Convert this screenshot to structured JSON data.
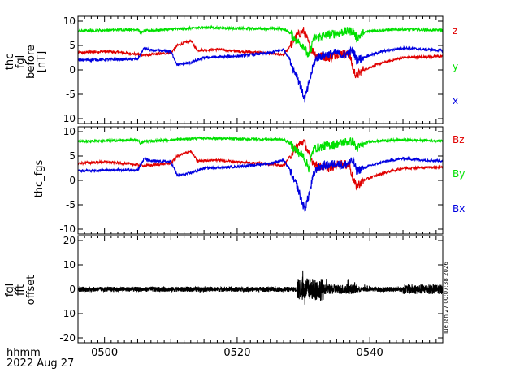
{
  "footer": {
    "time_format": "hhmm",
    "date": "2022 Aug 27",
    "timestamp": "Tue Jan 27 00:07:38 2026"
  },
  "x_axis": {
    "ticks": [
      "0500",
      "0520",
      "0540"
    ]
  },
  "chart_data": [
    {
      "type": "line",
      "ylabel_lines": [
        "thc",
        "fgl",
        "before",
        "[nT]"
      ],
      "ylim": [
        -11,
        11
      ],
      "yticks": [
        -10,
        -5,
        0,
        5,
        10
      ],
      "xlim_min": [
        496,
        551
      ],
      "legend_placement": "right",
      "series": [
        {
          "name": "z",
          "color": "#e00000",
          "shape": "Bz"
        },
        {
          "name": "y",
          "color": "#00e000",
          "shape": "By"
        },
        {
          "name": "x",
          "color": "#0000e0",
          "shape": "Bx"
        }
      ]
    },
    {
      "type": "line",
      "ylabel_lines": [
        "thc_fgs"
      ],
      "ylim": [
        -11,
        11
      ],
      "yticks": [
        -10,
        -5,
        0,
        5,
        10
      ],
      "xlim_min": [
        496,
        551
      ],
      "legend_placement": "right",
      "series": [
        {
          "name": "Bz",
          "color": "#e00000",
          "shape": "Bz"
        },
        {
          "name": "By",
          "color": "#00e000",
          "shape": "By"
        },
        {
          "name": "Bx",
          "color": "#0000e0",
          "shape": "Bx"
        }
      ]
    },
    {
      "type": "line",
      "ylabel_lines": [
        "fgl",
        "fft",
        "offset"
      ],
      "ylim": [
        -22,
        22
      ],
      "yticks": [
        -20,
        -10,
        0,
        10,
        20
      ],
      "xlim_min": [
        496,
        551
      ],
      "series": [
        {
          "name": "offset",
          "color": "#000000",
          "shape": "noise"
        }
      ]
    }
  ],
  "series_profiles": {
    "Bx": [
      [
        496,
        2.0
      ],
      [
        505,
        2.2
      ],
      [
        506,
        4.5
      ],
      [
        507,
        4.0
      ],
      [
        510,
        3.8
      ],
      [
        511,
        1.0
      ],
      [
        513,
        1.5
      ],
      [
        515,
        2.5
      ],
      [
        520,
        2.8
      ],
      [
        525,
        3.5
      ],
      [
        527,
        4.2
      ],
      [
        528,
        2.0
      ],
      [
        528.5,
        0.0
      ],
      [
        529,
        -1.0
      ],
      [
        529.8,
        -4.5
      ],
      [
        530.2,
        -6.0
      ],
      [
        530.8,
        -3.0
      ],
      [
        531.5,
        1.0
      ],
      [
        532,
        2.5
      ],
      [
        533,
        3.0
      ],
      [
        535,
        3.5
      ],
      [
        536,
        3.0
      ],
      [
        537.5,
        4.0
      ],
      [
        538,
        2.0
      ],
      [
        539,
        2.5
      ],
      [
        540,
        3.0
      ],
      [
        542,
        3.8
      ],
      [
        545,
        4.5
      ],
      [
        548,
        4.2
      ],
      [
        551,
        4.0
      ]
    ],
    "By": [
      [
        496,
        8.0
      ],
      [
        505,
        8.3
      ],
      [
        505.5,
        7.5
      ],
      [
        506,
        8.0
      ],
      [
        515,
        8.7
      ],
      [
        520,
        8.5
      ],
      [
        527,
        8.4
      ],
      [
        528,
        7.5
      ],
      [
        529,
        6.0
      ],
      [
        530,
        5.0
      ],
      [
        530.8,
        2.5
      ],
      [
        531.5,
        6.5
      ],
      [
        533,
        7.0
      ],
      [
        535,
        7.5
      ],
      [
        536,
        7.8
      ],
      [
        537.5,
        8.0
      ],
      [
        538,
        6.5
      ],
      [
        539,
        7.5
      ],
      [
        540,
        8.0
      ],
      [
        545,
        8.3
      ],
      [
        551,
        8.1
      ]
    ],
    "Bz": [
      [
        496,
        3.5
      ],
      [
        500,
        3.8
      ],
      [
        503,
        3.5
      ],
      [
        506,
        3.0
      ],
      [
        510,
        3.5
      ],
      [
        511,
        5.0
      ],
      [
        513,
        6.0
      ],
      [
        514,
        4.0
      ],
      [
        517,
        4.2
      ],
      [
        520,
        3.8
      ],
      [
        524,
        3.5
      ],
      [
        527,
        3.0
      ],
      [
        528,
        5.0
      ],
      [
        529,
        7.0
      ],
      [
        530,
        8.0
      ],
      [
        530.5,
        6.5
      ],
      [
        531,
        4.5
      ],
      [
        532,
        3.0
      ],
      [
        534,
        2.5
      ],
      [
        535.5,
        3.5
      ],
      [
        537,
        3.0
      ],
      [
        537.5,
        0.0
      ],
      [
        538,
        -1.2
      ],
      [
        539,
        0.0
      ],
      [
        540,
        0.5
      ],
      [
        542,
        1.5
      ],
      [
        545,
        2.5
      ],
      [
        551,
        2.8
      ]
    ]
  }
}
